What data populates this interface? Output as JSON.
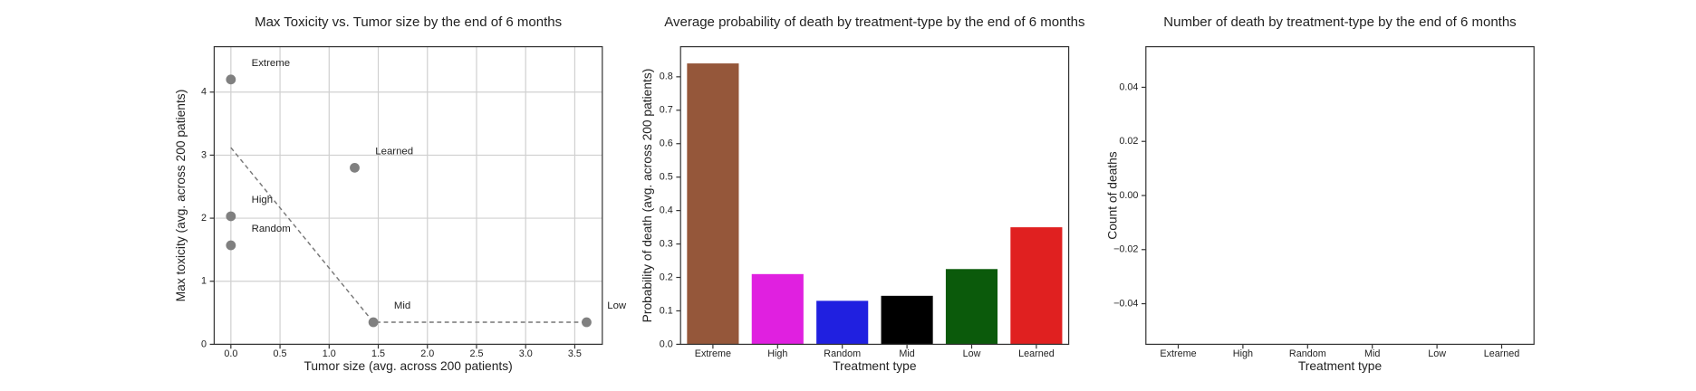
{
  "chart_data": [
    {
      "type": "scatter",
      "title": "Max Toxicity vs. Tumor size by the end of 6 months",
      "x_label": "Tumor size (avg. across 200 patients)",
      "y_label": "Max toxicity (avg. across 200 patients)",
      "labels": [
        "Extreme",
        "High",
        "Random",
        "Learned",
        "Mid",
        "Low"
      ],
      "x": [
        0,
        0,
        0,
        1.26,
        1.45,
        3.62
      ],
      "values": [
        4.2,
        2.03,
        1.57,
        2.8,
        0.35,
        0.35
      ],
      "color": "#808080",
      "line": {
        "x": [
          0,
          1.45,
          3.62
        ],
        "values": [
          3.12,
          0.35,
          0.35
        ],
        "color": "#777777"
      },
      "xlim": [
        -0.17,
        3.78
      ],
      "ylim": [
        0,
        4.72
      ],
      "xticks": [
        {
          "value": 0,
          "label": "0.0"
        },
        {
          "value": 0.5,
          "label": "0.5"
        },
        {
          "value": 1,
          "label": "1.0"
        },
        {
          "value": 1.5,
          "label": "1.5"
        },
        {
          "value": 2,
          "label": "2.0"
        },
        {
          "value": 2.5,
          "label": "2.5"
        },
        {
          "value": 3,
          "label": "3.0"
        },
        {
          "value": 3.5,
          "label": "3.5"
        }
      ],
      "yticks": [
        0,
        1,
        2,
        3,
        4
      ],
      "grid": true
    },
    {
      "type": "bar",
      "title": "Average probability of death by treatment-type by the end of 6 months",
      "x_label": "Treatment type",
      "y_label": "Probability of death (avg. across 200 patients)",
      "categories": [
        "Extreme",
        "High",
        "Random",
        "Mid",
        "Low",
        "Learned"
      ],
      "values": [
        0.84,
        0.21,
        0.13,
        0.145,
        0.225,
        0.35
      ],
      "colors": [
        "#95573a",
        "#e020e0",
        "#2020e0",
        "#000000",
        "#0b5a0b",
        "#e02020"
      ],
      "ylim": [
        0,
        0.89
      ],
      "yticks": [
        {
          "value": 0,
          "label": "0.0"
        },
        0.1,
        0.2,
        0.3,
        0.4,
        0.5,
        0.6,
        0.7,
        0.8
      ],
      "grid": false
    },
    {
      "type": "bar",
      "title": "Number of death by treatment-type by the end of 6 months",
      "x_label": "Treatment type",
      "y_label": "Count of deaths",
      "categories": [
        "Extreme",
        "High",
        "Random",
        "Mid",
        "Low",
        "Learned"
      ],
      "ylim": [
        -0.055,
        0.055
      ],
      "yticks": [
        {
          "value": -0.04,
          "label": "−0.04"
        },
        {
          "value": -0.02,
          "label": "−0.02"
        },
        {
          "value": 0,
          "label": "0.00"
        },
        0.02,
        0.04
      ],
      "grid": false
    }
  ]
}
